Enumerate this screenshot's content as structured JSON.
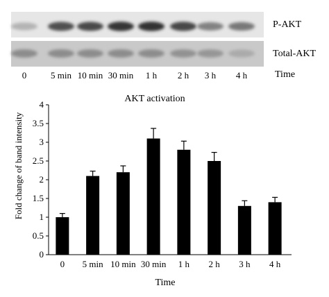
{
  "blot": {
    "lanes": [
      "0",
      "5 min",
      "10 min",
      "30 min",
      "1 h",
      "2 h",
      "3 h",
      "4 h"
    ],
    "time_label": "Time",
    "rows": [
      {
        "label": "P-AKT",
        "intensity": [
          0.25,
          0.75,
          0.78,
          0.88,
          0.9,
          0.8,
          0.5,
          0.55
        ]
      },
      {
        "label": "Total-AKT",
        "intensity": [
          0.45,
          0.45,
          0.45,
          0.45,
          0.45,
          0.42,
          0.4,
          0.3
        ]
      }
    ]
  },
  "chart_data": {
    "type": "bar",
    "title": "AKT activation",
    "xlabel": "Time",
    "ylabel": "Fold change of band intensity",
    "categories": [
      "0",
      "5 min",
      "10 min",
      "30 min",
      "1 h",
      "2 h",
      "3 h",
      "4 h"
    ],
    "values": [
      1.0,
      2.1,
      2.2,
      3.1,
      2.8,
      2.5,
      1.3,
      1.4
    ],
    "errors": [
      0.1,
      0.13,
      0.17,
      0.27,
      0.23,
      0.23,
      0.14,
      0.13
    ],
    "ylim": [
      0,
      4
    ],
    "yticks": [
      "0",
      "0.5",
      "1",
      "1.5",
      "2",
      "2.5",
      "3",
      "3.5",
      "4"
    ],
    "grid": false,
    "bar_color": "#000000"
  }
}
